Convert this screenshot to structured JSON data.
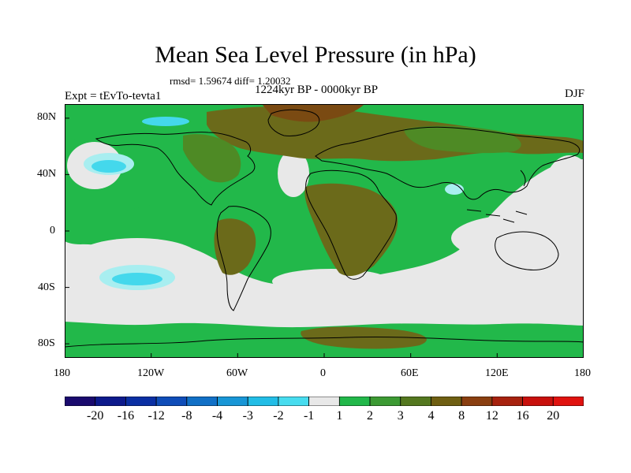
{
  "header": {
    "title": "Mean Sea Level Pressure (in hPa)",
    "stats": "rmsd= 1.59674 diff= 1.20032",
    "period": "1224kyr BP - 0000kyr BP",
    "experiment": "Expt = tEvTo-tevta1",
    "season": "DJF"
  },
  "map": {
    "projection": "cylindrical equidistant",
    "lon_range": [
      -180,
      180
    ],
    "lat_range": [
      -90,
      90
    ],
    "x_ticks": [
      "180",
      "120W",
      "60W",
      "0",
      "60E",
      "120E",
      "180"
    ],
    "y_ticks": [
      "80N",
      "40N",
      "0",
      "40S",
      "80S"
    ],
    "colors": {
      "background_band": "#e8e8e8",
      "green": "#22b84a",
      "dark_green": "#4e8a25",
      "olive": "#6b6a1a",
      "brown": "#7a4a12",
      "light_cyan": "#a8eef0",
      "cyan": "#44d8ec",
      "coast": "#000000"
    }
  },
  "colorbar": {
    "labels": [
      "-20",
      "-16",
      "-12",
      "-8",
      "-4",
      "-3",
      "-2",
      "-1",
      "1",
      "2",
      "3",
      "4",
      "8",
      "12",
      "16",
      "20"
    ],
    "colors": [
      "#1a0a6e",
      "#0d1a8c",
      "#0a2fa3",
      "#0f4db8",
      "#1170c6",
      "#1896d6",
      "#22bde6",
      "#47dcef",
      "#e8e8e8",
      "#22b84a",
      "#3c9a33",
      "#54781f",
      "#6f5f12",
      "#8a3f10",
      "#a7220e",
      "#c8100c",
      "#e0120f"
    ]
  }
}
